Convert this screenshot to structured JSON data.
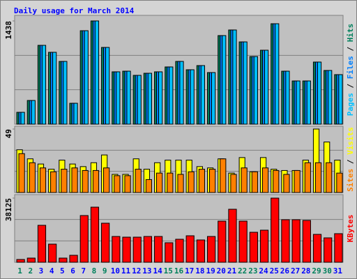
{
  "chart_data": [
    {
      "type": "bar",
      "title": "Daily usage for March 2014",
      "ylim": [
        0,
        1438
      ],
      "yticks": [
        1438
      ],
      "grid": true,
      "legend_separator": " / ",
      "series": [
        {
          "name": "Pages",
          "color": "#00C0FF",
          "values": [
            165,
            330,
            1098,
            1001,
            874,
            291,
            1302,
            1438,
            1069,
            729,
            738,
            680,
            709,
            729,
            797,
            874,
            758,
            816,
            719,
            1234,
            1312,
            1146,
            942,
            1030,
            1399,
            738,
            602,
            602,
            865,
            748,
            690
          ]
        },
        {
          "name": "Files",
          "color": "#0080FF",
          "values": [
            165,
            330,
            1098,
            1001,
            874,
            291,
            1302,
            1438,
            1069,
            729,
            738,
            680,
            709,
            729,
            797,
            874,
            758,
            816,
            719,
            1234,
            1312,
            1146,
            942,
            1030,
            1399,
            738,
            602,
            602,
            865,
            748,
            690
          ]
        },
        {
          "name": "Hits",
          "color": "#00805C",
          "values": [
            165,
            330,
            1098,
            1001,
            874,
            291,
            1302,
            1438,
            1069,
            729,
            738,
            680,
            709,
            729,
            797,
            874,
            758,
            816,
            719,
            1234,
            1312,
            1146,
            942,
            1030,
            1399,
            738,
            602,
            602,
            865,
            748,
            690
          ]
        }
      ]
    },
    {
      "type": "bar",
      "ylim": [
        0,
        49
      ],
      "yticks": [
        49
      ],
      "grid": true,
      "legend_separator": " / ",
      "series": [
        {
          "name": "Sites",
          "color": "#FF8000",
          "values": [
            30,
            23,
            19,
            16,
            18,
            19,
            17,
            17,
            19,
            13,
            13,
            18,
            10,
            15,
            15,
            14,
            16,
            18,
            18,
            26,
            14,
            19,
            16,
            19,
            17,
            14,
            17,
            23,
            23,
            23,
            15
          ]
        },
        {
          "name": "Visits",
          "color": "#FFFF00",
          "values": [
            33,
            26,
            22,
            18,
            25,
            22,
            20,
            23,
            29,
            14,
            14,
            26,
            18,
            23,
            25,
            25,
            25,
            20,
            19,
            26,
            15,
            27,
            16,
            27,
            18,
            17,
            17,
            25,
            49,
            39,
            25
          ]
        }
      ]
    },
    {
      "type": "bar",
      "ylim": [
        0,
        38125
      ],
      "yticks": [
        38125
      ],
      "grid": true,
      "categories": [
        "1",
        "2",
        "3",
        "4",
        "5",
        "6",
        "7",
        "8",
        "9",
        "10",
        "11",
        "12",
        "13",
        "14",
        "15",
        "16",
        "17",
        "18",
        "19",
        "20",
        "21",
        "22",
        "23",
        "24",
        "25",
        "26",
        "27",
        "28",
        "29",
        "30",
        "31"
      ],
      "category_colors": [
        "#00805C",
        "#00805C",
        "#0000FF",
        "#0000FF",
        "#0000FF",
        "#0000FF",
        "#0000FF",
        "#00805C",
        "#00805C",
        "#0000FF",
        "#0000FF",
        "#0000FF",
        "#0000FF",
        "#0000FF",
        "#00805C",
        "#00805C",
        "#0000FF",
        "#0000FF",
        "#0000FF",
        "#0000FF",
        "#0000FF",
        "#00805C",
        "#00805C",
        "#0000FF",
        "#0000FF",
        "#0000FF",
        "#0000FF",
        "#0000FF",
        "#00805C",
        "#00805C",
        "#0000FF"
      ],
      "series": [
        {
          "name": "KBytes",
          "color": "#FF0000",
          "values": [
            1658,
            2486,
            21963,
            10774,
            2486,
            4144,
            27765,
            32738,
            23207,
            15333,
            14918,
            14918,
            15333,
            15333,
            11603,
            13675,
            15747,
            13261,
            15333,
            24450,
            31495,
            24450,
            17819,
            19062,
            38125,
            25279,
            25279,
            24864,
            16576,
            14504,
            16990
          ]
        }
      ]
    }
  ]
}
